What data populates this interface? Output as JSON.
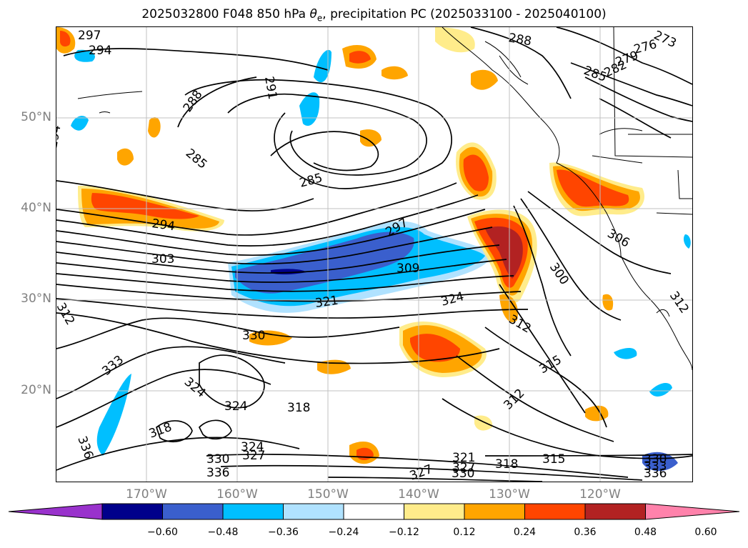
{
  "title": {
    "prefix": "2025032800 F048 850 hPa ",
    "theta": "θ",
    "theta_sub": "e",
    "suffix": ", precipitation PC (2025033100 - 2025040100)"
  },
  "axes": {
    "lat_labels": [
      "50°N",
      "40°N",
      "30°N",
      "20°N"
    ],
    "lon_labels": [
      "170°W",
      "160°W",
      "150°W",
      "140°W",
      "130°W",
      "120°W"
    ]
  },
  "colorbar": {
    "colors": [
      "#9932cc",
      "#00008b",
      "#3a5fcd",
      "#00bfff",
      "#b0e2ff",
      "#ffffff",
      "#ffec8b",
      "#ffa500",
      "#ff4500",
      "#b22222",
      "#ff82ab"
    ],
    "ticks": [
      "−0.60",
      "−0.48",
      "−0.36",
      "−0.24",
      "−0.12",
      "0.12",
      "0.24",
      "0.36",
      "0.48",
      "0.60"
    ]
  },
  "contour_labels": [
    "297",
    "294",
    "291",
    "288",
    "285",
    "285",
    "294",
    "303",
    "297",
    "309",
    "321",
    "324",
    "312",
    "330",
    "333",
    "324",
    "324",
    "318",
    "318",
    "324",
    "327",
    "330",
    "336",
    "336",
    "321",
    "327",
    "330",
    "318",
    "315",
    "312",
    "312",
    "315",
    "300",
    "306",
    "273",
    "276",
    "279",
    "282",
    "285",
    "288",
    "294",
    "312",
    "330",
    "333",
    "336",
    "327"
  ]
}
